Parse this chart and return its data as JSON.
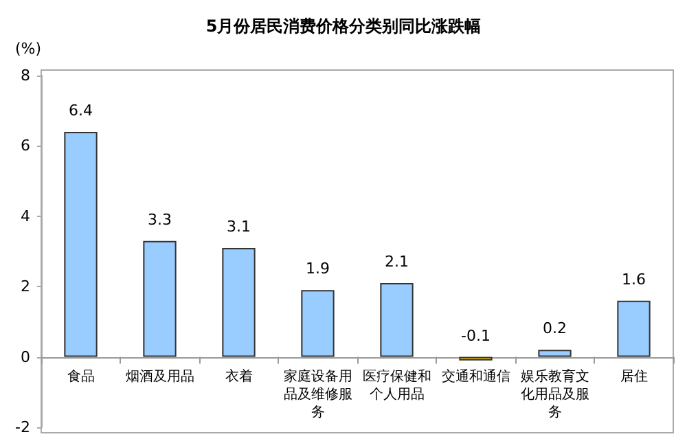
{
  "chart_data": {
    "type": "bar",
    "title": "5月份居民消费价格分类别同比涨跌幅",
    "ylabel": "(%)",
    "categories": [
      "食品",
      "烟酒及用品",
      "衣着",
      "家庭设备用品及维修服务",
      "医疗保健和个人用品",
      "交通和通信",
      "娱乐教育文化用品及服务",
      "居住"
    ],
    "values": [
      6.4,
      3.3,
      3.1,
      1.9,
      2.1,
      -0.1,
      0.2,
      1.6
    ],
    "colors": [
      "#99ccff",
      "#99ccff",
      "#99ccff",
      "#99ccff",
      "#99ccff",
      "#ffcc00",
      "#99ccff",
      "#99ccff"
    ],
    "ylim": [
      -2,
      8
    ],
    "yticks": [
      -2,
      0,
      2,
      4,
      6,
      8
    ],
    "grid": false,
    "data_labels": true
  }
}
